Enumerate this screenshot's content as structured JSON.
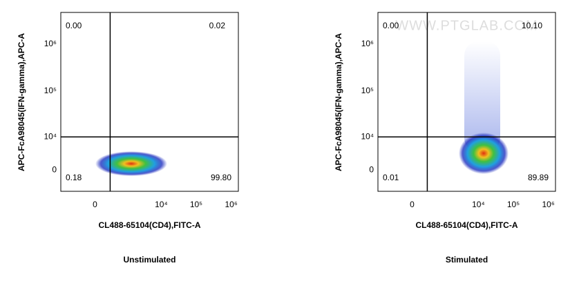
{
  "chart_data": [
    {
      "type": "scatter",
      "title": "Unstimulated",
      "x_label": "CL488-65104(CD4),FITC-A",
      "y_label": "APC-FcA98045(IFN-gamma),APC-A",
      "xlim": [
        -1200,
        1600000
      ],
      "ylim": [
        -5000,
        4800000
      ],
      "xticks": [
        0,
        {
          "value": 10000,
          "label": "10⁴"
        },
        {
          "value": 100000,
          "label": "10⁵"
        },
        {
          "value": 1000000,
          "label": "10⁶"
        }
      ],
      "yticks": [
        0,
        {
          "value": 10000,
          "label": "10⁴"
        },
        {
          "value": 100000,
          "label": "10⁵"
        },
        {
          "value": 1000000,
          "label": "10⁶"
        }
      ],
      "gate": {
        "x": 300,
        "y": 10000
      },
      "quadrants": {
        "values": [
          0,
          0.02,
          0.18,
          99.8
        ],
        "value_labels": [
          "0.00",
          "0.02",
          "0.18",
          "99.80"
        ]
      }
    },
    {
      "type": "scatter",
      "title": "Stimulated",
      "x_label": "CL488-65104(CD4),FITC-A",
      "y_label": "APC-FcA98045(IFN-gamma),APC-A",
      "xlim": [
        -1200,
        1600000
      ],
      "ylim": [
        -5000,
        4800000
      ],
      "xticks": [
        0,
        {
          "value": 10000,
          "label": "10⁴"
        },
        {
          "value": 100000,
          "label": "10⁵"
        },
        {
          "value": 1000000,
          "label": "10⁶"
        }
      ],
      "yticks": [
        0,
        {
          "value": 10000,
          "label": "10⁴"
        },
        {
          "value": 100000,
          "label": "10⁵"
        },
        {
          "value": 1000000,
          "label": "10⁶"
        }
      ],
      "gate": {
        "x": 300,
        "y": 10000
      },
      "quadrants": {
        "values": [
          0,
          10.1,
          0.01,
          89.89
        ],
        "value_labels": [
          "0.00",
          "10.10",
          "0.01",
          "89.89"
        ]
      },
      "watermark": "WWW.PTGLAB.COM"
    }
  ]
}
